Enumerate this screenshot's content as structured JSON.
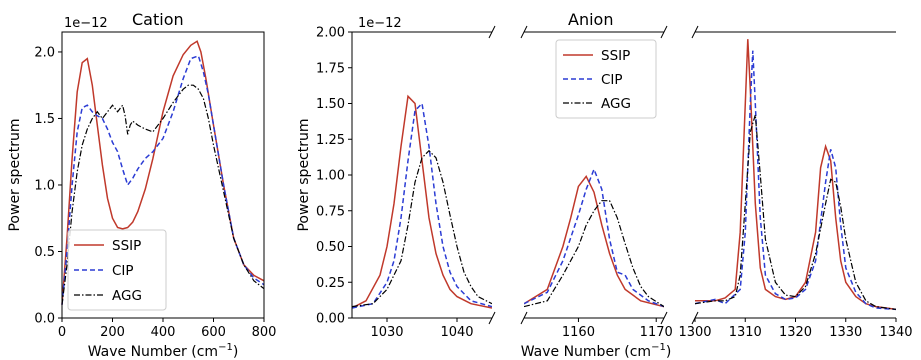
{
  "chart_data": [
    {
      "type": "line",
      "title": "Cation",
      "offset_text": "1e−12",
      "xlabel": "Wave Number (cm$^{-1}$)",
      "ylabel": "Power spectrum",
      "xlim": [
        0,
        800
      ],
      "ylim": [
        0,
        2.15
      ],
      "xticks": [
        0,
        200,
        400,
        600,
        800
      ],
      "yticks": [
        0.0,
        0.5,
        1.0,
        1.5,
        2.0
      ],
      "ytick_labels": [
        "0.0",
        "0.5",
        "1.0",
        "1.5",
        "2.0"
      ],
      "legend_position": "lower-left",
      "series": [
        {
          "name": "SSIP",
          "color": "#c0392b",
          "dash": "solid",
          "x": [
            0,
            20,
            40,
            60,
            80,
            100,
            120,
            140,
            160,
            180,
            200,
            220,
            240,
            260,
            280,
            300,
            330,
            360,
            400,
            440,
            480,
            510,
            535,
            550,
            570,
            600,
            640,
            680,
            720,
            760,
            800
          ],
          "y": [
            0.1,
            0.6,
            1.2,
            1.7,
            1.92,
            1.95,
            1.75,
            1.45,
            1.15,
            0.9,
            0.75,
            0.68,
            0.67,
            0.68,
            0.72,
            0.8,
            0.97,
            1.2,
            1.55,
            1.82,
            1.98,
            2.05,
            2.08,
            2.0,
            1.8,
            1.45,
            1.0,
            0.6,
            0.4,
            0.32,
            0.28
          ]
        },
        {
          "name": "CIP",
          "color": "#2b3cd4",
          "dash": "dashed",
          "x": [
            0,
            20,
            40,
            60,
            80,
            100,
            120,
            140,
            160,
            180,
            200,
            220,
            240,
            260,
            280,
            300,
            330,
            360,
            400,
            440,
            480,
            510,
            540,
            560,
            580,
            600,
            640,
            680,
            720,
            760,
            800
          ],
          "y": [
            0.1,
            0.5,
            1.0,
            1.4,
            1.58,
            1.6,
            1.55,
            1.52,
            1.5,
            1.42,
            1.32,
            1.25,
            1.12,
            1.0,
            1.05,
            1.12,
            1.2,
            1.25,
            1.35,
            1.55,
            1.8,
            1.95,
            1.97,
            1.85,
            1.68,
            1.45,
            1.0,
            0.6,
            0.4,
            0.3,
            0.25
          ]
        },
        {
          "name": "AGG",
          "color": "#000000",
          "dash": "dashdot",
          "x": [
            0,
            20,
            40,
            60,
            80,
            100,
            120,
            140,
            160,
            180,
            200,
            220,
            240,
            250,
            260,
            270,
            280,
            300,
            330,
            360,
            400,
            440,
            480,
            500,
            520,
            540,
            560,
            580,
            600,
            640,
            680,
            720,
            760,
            800
          ],
          "y": [
            0.1,
            0.4,
            0.8,
            1.1,
            1.3,
            1.42,
            1.5,
            1.55,
            1.5,
            1.55,
            1.6,
            1.55,
            1.6,
            1.52,
            1.38,
            1.45,
            1.48,
            1.45,
            1.42,
            1.4,
            1.5,
            1.62,
            1.72,
            1.75,
            1.75,
            1.72,
            1.65,
            1.5,
            1.3,
            0.95,
            0.6,
            0.4,
            0.28,
            0.22
          ]
        }
      ]
    },
    {
      "type": "line",
      "title": "Anion",
      "offset_text": "1e−12",
      "xlabel": "Wave Number (cm$^{-1}$)",
      "ylabel": "Power spectrum",
      "ylim": [
        0,
        2.0
      ],
      "yticks": [
        0.0,
        0.25,
        0.5,
        0.75,
        1.0,
        1.25,
        1.5,
        1.75,
        2.0
      ],
      "ytick_labels": [
        "0.00",
        "0.25",
        "0.50",
        "0.75",
        "1.00",
        "1.25",
        "1.50",
        "1.75",
        "2.00"
      ],
      "broken_x_axis": true,
      "legend_position": "upper-left of middle segment",
      "panels": [
        {
          "xlim": [
            1025,
            1045
          ],
          "xticks": [
            1030,
            1040
          ]
        },
        {
          "xlim": [
            1153,
            1171
          ],
          "xticks": [
            1160,
            1170
          ]
        },
        {
          "xlim": [
            1300,
            1340
          ],
          "xticks": [
            1300,
            1310,
            1320,
            1330,
            1340
          ]
        }
      ],
      "series": [
        {
          "name": "SSIP",
          "color": "#c0392b",
          "dash": "solid",
          "segments": [
            {
              "x": [
                1025,
                1027,
                1029,
                1030,
                1031,
                1032,
                1033,
                1034,
                1035,
                1036,
                1037,
                1038,
                1039,
                1040,
                1042,
                1045
              ],
              "y": [
                0.07,
                0.12,
                0.3,
                0.5,
                0.8,
                1.2,
                1.55,
                1.5,
                1.1,
                0.7,
                0.45,
                0.3,
                0.2,
                0.15,
                0.1,
                0.07
              ]
            },
            {
              "x": [
                1153,
                1156,
                1158,
                1159,
                1160,
                1161,
                1162,
                1163,
                1164,
                1165,
                1166,
                1168,
                1171
              ],
              "y": [
                0.1,
                0.2,
                0.5,
                0.7,
                0.92,
                0.99,
                0.88,
                0.65,
                0.45,
                0.3,
                0.2,
                0.12,
                0.08
              ]
            },
            {
              "x": [
                1300,
                1304,
                1306,
                1308,
                1309,
                1310,
                1310.5,
                1311,
                1312,
                1313,
                1314,
                1316,
                1318,
                1320,
                1322,
                1324,
                1325,
                1326,
                1327,
                1328,
                1329,
                1330,
                1332,
                1334,
                1336,
                1340
              ],
              "y": [
                0.12,
                0.12,
                0.14,
                0.2,
                0.6,
                1.5,
                1.95,
                1.6,
                0.8,
                0.35,
                0.2,
                0.15,
                0.13,
                0.15,
                0.25,
                0.6,
                1.05,
                1.2,
                1.1,
                0.7,
                0.4,
                0.25,
                0.15,
                0.1,
                0.08,
                0.06
              ]
            }
          ]
        },
        {
          "name": "CIP",
          "color": "#2b3cd4",
          "dash": "dashed",
          "segments": [
            {
              "x": [
                1025,
                1028,
                1030,
                1031,
                1032,
                1033,
                1034,
                1035,
                1036,
                1037,
                1038,
                1039,
                1040,
                1042,
                1045
              ],
              "y": [
                0.07,
                0.1,
                0.25,
                0.4,
                0.7,
                1.1,
                1.45,
                1.5,
                1.2,
                0.8,
                0.5,
                0.32,
                0.22,
                0.12,
                0.08
              ]
            },
            {
              "x": [
                1153,
                1156,
                1158,
                1160,
                1161,
                1162,
                1163,
                1164,
                1165,
                1166,
                1167,
                1169,
                1171
              ],
              "y": [
                0.1,
                0.18,
                0.4,
                0.72,
                0.9,
                1.04,
                0.9,
                0.55,
                0.32,
                0.3,
                0.2,
                0.12,
                0.08
              ]
            },
            {
              "x": [
                1300,
                1304,
                1306,
                1309,
                1310,
                1311,
                1311.5,
                1312,
                1313,
                1314,
                1316,
                1318,
                1320,
                1322,
                1324,
                1326,
                1327,
                1328,
                1329,
                1330,
                1332,
                1334,
                1336,
                1340
              ],
              "y": [
                0.1,
                0.13,
                0.1,
                0.2,
                0.6,
                1.5,
                1.87,
                1.5,
                0.7,
                0.3,
                0.17,
                0.13,
                0.14,
                0.2,
                0.4,
                0.95,
                1.18,
                1.05,
                0.65,
                0.35,
                0.18,
                0.1,
                0.07,
                0.06
              ]
            }
          ]
        },
        {
          "name": "AGG",
          "color": "#000000",
          "dash": "dashdot",
          "segments": [
            {
              "x": [
                1025,
                1028,
                1030,
                1032,
                1033,
                1034,
                1035,
                1036,
                1037,
                1038,
                1039,
                1040,
                1041,
                1042,
                1043,
                1045
              ],
              "y": [
                0.08,
                0.1,
                0.2,
                0.4,
                0.65,
                0.95,
                1.12,
                1.17,
                1.12,
                0.95,
                0.72,
                0.5,
                0.32,
                0.22,
                0.15,
                0.1
              ]
            },
            {
              "x": [
                1153,
                1156,
                1158,
                1160,
                1161,
                1162,
                1163,
                1164,
                1165,
                1166,
                1167,
                1168,
                1169,
                1171
              ],
              "y": [
                0.08,
                0.12,
                0.3,
                0.5,
                0.65,
                0.75,
                0.82,
                0.82,
                0.7,
                0.52,
                0.35,
                0.22,
                0.15,
                0.08
              ]
            },
            {
              "x": [
                1300,
                1304,
                1306,
                1308,
                1309,
                1310,
                1311,
                1312,
                1313,
                1314,
                1316,
                1318,
                1320,
                1322,
                1324,
                1326,
                1327,
                1328,
                1329,
                1330,
                1332,
                1334,
                1336,
                1340
              ],
              "y": [
                0.1,
                0.12,
                0.12,
                0.15,
                0.3,
                0.8,
                1.3,
                1.42,
                1.0,
                0.55,
                0.25,
                0.16,
                0.15,
                0.22,
                0.45,
                0.8,
                0.97,
                0.95,
                0.78,
                0.55,
                0.25,
                0.12,
                0.08,
                0.06
              ]
            }
          ]
        }
      ]
    }
  ],
  "xlabel_text": "Wave Number (cm",
  "xlabel_sup": "−1",
  "xlabel_close": ")"
}
